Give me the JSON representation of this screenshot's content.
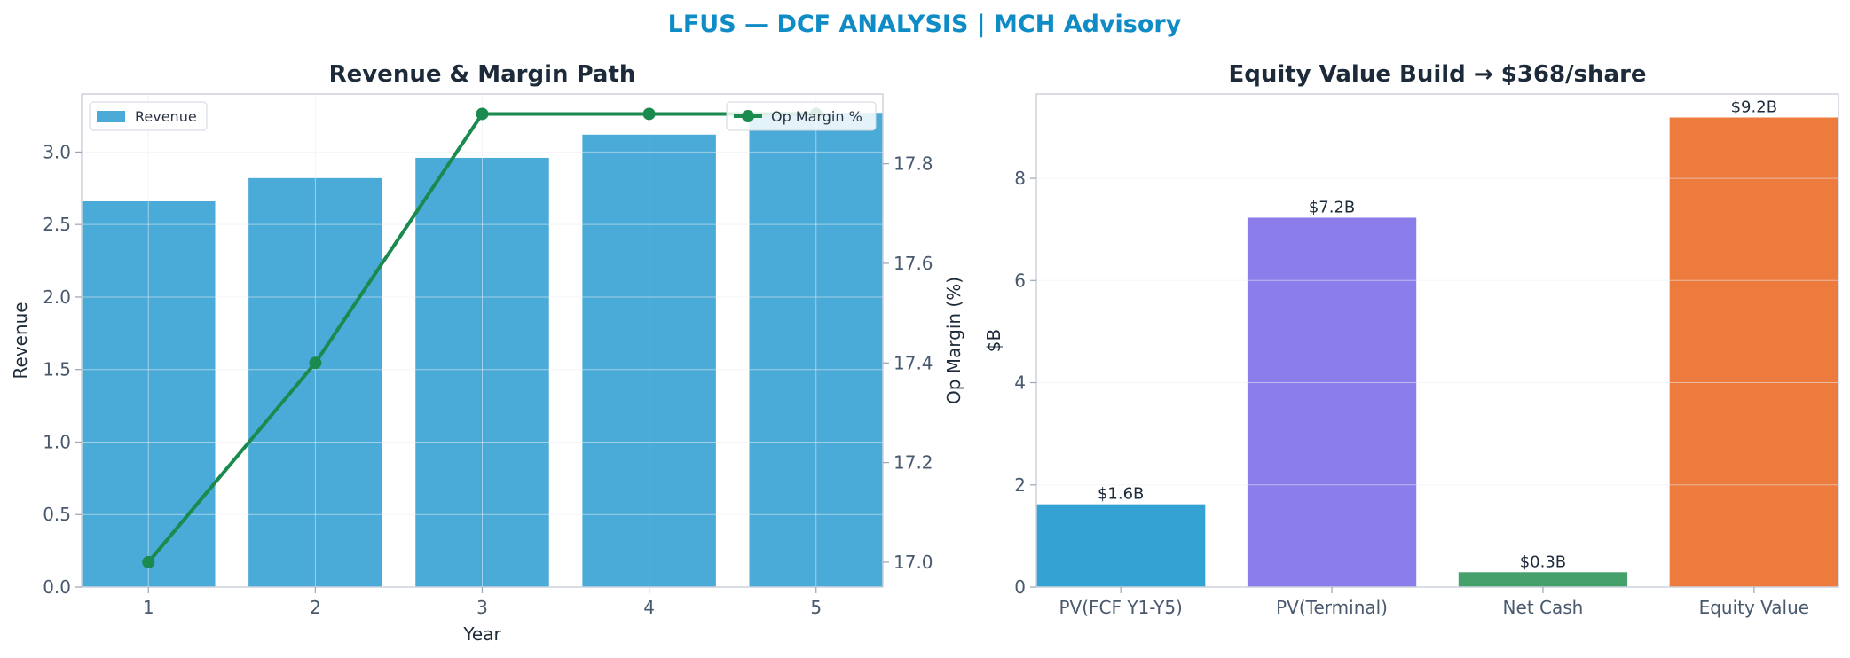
{
  "suptitle": "LFUS — DCF ANALYSIS | MCH Advisory",
  "chart_data": [
    {
      "type": "bar",
      "title": "Revenue & Margin Path",
      "xlabel": "Year",
      "ylabel": "Revenue",
      "y2label": "Op Margin (%)",
      "categories": [
        "1",
        "2",
        "3",
        "4",
        "5"
      ],
      "ylim": [
        0,
        3.4
      ],
      "yticks": [
        0.0,
        0.5,
        1.0,
        1.5,
        2.0,
        2.5,
        3.0
      ],
      "ytick_labels": [
        "0.0",
        "0.5",
        "1.0",
        "1.5",
        "2.0",
        "2.5",
        "3.0"
      ],
      "y2lim": [
        16.95,
        17.94
      ],
      "y2ticks": [
        17.0,
        17.2,
        17.4,
        17.6,
        17.8
      ],
      "y2tick_labels": [
        "17.0",
        "17.2",
        "17.4",
        "17.6",
        "17.8"
      ],
      "grid": true,
      "series": [
        {
          "name": "Revenue",
          "type": "bar",
          "axis": "left",
          "color": "#4aaad8",
          "values": [
            2.66,
            2.82,
            2.96,
            3.12,
            3.27
          ]
        },
        {
          "name": "Op Margin %",
          "type": "line",
          "axis": "right",
          "color": "#1a8a4e",
          "values": [
            17.0,
            17.4,
            17.9,
            17.9,
            17.9
          ]
        }
      ],
      "legends": [
        {
          "entries": [
            "Revenue"
          ],
          "placement": "upper-left"
        },
        {
          "entries": [
            "Op Margin %"
          ],
          "placement": "upper-right"
        }
      ]
    },
    {
      "type": "bar",
      "title": "Equity Value Build → $368/share",
      "xlabel": "",
      "ylabel": "$B",
      "categories": [
        "PV(FCF Y1-Y5)",
        "PV(Terminal)",
        "Net Cash",
        "Equity Value"
      ],
      "values": [
        1.62,
        7.23,
        0.29,
        9.19
      ],
      "data_labels": [
        "$1.6B",
        "$7.2B",
        "$0.3B",
        "$9.2B"
      ],
      "colors": [
        "#34a3d4",
        "#8b7eea",
        "#46a06b",
        "#ec7b3d"
      ],
      "ylim": [
        0,
        9.65
      ],
      "yticks": [
        0,
        2,
        4,
        6,
        8
      ],
      "ytick_labels": [
        "0",
        "2",
        "4",
        "6",
        "8"
      ],
      "grid": true
    }
  ]
}
